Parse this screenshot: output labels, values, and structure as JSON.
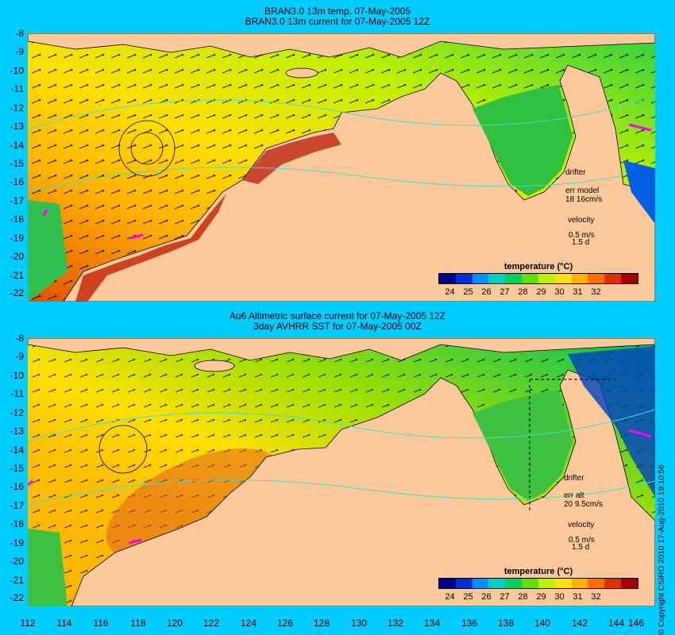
{
  "top_panel": {
    "title_line1": "BRAN3.0 13m temp. 07-May-2005",
    "title_line2": "BRAN3.0 13m current for 07-May-2005 12Z",
    "legend_title": "temperature (°C)",
    "drifter_label": "drifter",
    "err_label": "err model",
    "err_value": "18 16cm/s",
    "velocity_label": "velocity",
    "velocity_scale": "0.5 m/s",
    "velocity_time": "1.5 d"
  },
  "bottom_panel": {
    "title_line1": "Au6 Altimetric surface current for 07-May-2005 12Z",
    "title_line2": "3day AVHRR SST for 07-May-2005 00Z",
    "legend_title": "temperature (°C)",
    "drifter_label": "drifter",
    "err_label": "err alt",
    "err_value": "20 9.5cm/s",
    "velocity_label": "velocity",
    "velocity_scale": "0.5 m/s",
    "velocity_time": "1.5 d"
  },
  "y_axis_ticks": [
    "-8",
    "-9",
    "-10",
    "-11",
    "-12",
    "-13",
    "-14",
    "-15",
    "-16",
    "-17",
    "-18",
    "-19",
    "-20",
    "-21",
    "-22"
  ],
  "x_axis_ticks": [
    "112",
    "114",
    "116",
    "118",
    "120",
    "122",
    "124",
    "126",
    "128",
    "130",
    "132",
    "134",
    "136",
    "138",
    "140",
    "142",
    "144",
    "146"
  ],
  "colorbar_ticks": [
    "24",
    "25",
    "26",
    "27",
    "28",
    "29",
    "30",
    "31",
    "32"
  ],
  "colorbar_colors": [
    "#000080",
    "#0030d0",
    "#0090ff",
    "#00d0c0",
    "#00d060",
    "#60e000",
    "#c0f000",
    "#ffe000",
    "#ffb000",
    "#ff7000",
    "#e03000",
    "#a00000"
  ],
  "land_color": "#fdc99b",
  "copyright": "© Copyright CSIRO 2010   17-Aug-2010 19:10:56"
}
